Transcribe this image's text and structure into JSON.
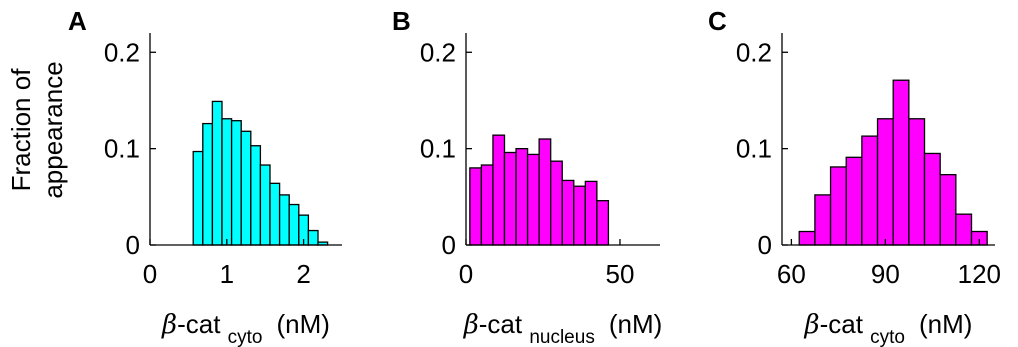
{
  "ylabel_lines": [
    "Fraction of",
    "appearance"
  ],
  "chart_data": [
    {
      "type": "bar",
      "panel": "A",
      "xlim": [
        0,
        2.5
      ],
      "ylim": [
        0,
        0.22
      ],
      "xticks": [
        0,
        1,
        2
      ],
      "xtick_labels": [
        "0",
        "1",
        "2"
      ],
      "yticks": [
        0,
        0.1,
        0.2
      ],
      "ytick_labels": [
        "0",
        "0.1",
        "0.2"
      ],
      "bin_width": 0.125,
      "bin_centers": [
        0.625,
        0.75,
        0.875,
        1.0,
        1.125,
        1.25,
        1.375,
        1.5,
        1.625,
        1.75,
        1.875,
        2.0,
        2.125,
        2.25
      ],
      "values": [
        0.097,
        0.126,
        0.149,
        0.131,
        0.129,
        0.118,
        0.103,
        0.083,
        0.064,
        0.052,
        0.042,
        0.031,
        0.015,
        0.003
      ],
      "color": "#00ffff",
      "xlabel": {
        "symbol": "β",
        "main": "-cat",
        "sub": "cyto",
        "unit": "(nM)"
      }
    },
    {
      "type": "bar",
      "panel": "B",
      "xlim": [
        0,
        63
      ],
      "ylim": [
        0,
        0.22
      ],
      "xticks": [
        0,
        50
      ],
      "xtick_labels": [
        "0",
        "50"
      ],
      "yticks": [
        0,
        0.1,
        0.2
      ],
      "ytick_labels": [
        "0",
        "0.1",
        "0.2"
      ],
      "bin_width": 3.75,
      "bin_centers": [
        3.125,
        6.875,
        10.625,
        14.375,
        18.125,
        21.875,
        25.625,
        29.375,
        33.125,
        36.875,
        40.625,
        44.375,
        48.125
      ],
      "values": [
        0.08,
        0.083,
        0.114,
        0.096,
        0.1,
        0.094,
        0.11,
        0.087,
        0.067,
        0.061,
        0.066,
        0.046,
        0.0
      ],
      "color": "#ff00ff",
      "xlabel": {
        "symbol": "β",
        "main": "-cat",
        "sub": "nucleus",
        "unit": "(nM)"
      }
    },
    {
      "type": "bar",
      "panel": "C",
      "xlim": [
        57,
        125
      ],
      "ylim": [
        0,
        0.22
      ],
      "xticks": [
        60,
        90,
        120
      ],
      "xtick_labels": [
        "60",
        "90",
        "120"
      ],
      "yticks": [
        0,
        0.1,
        0.2
      ],
      "ytick_labels": [
        "0",
        "0.1",
        "0.2"
      ],
      "bin_width": 5,
      "bin_centers": [
        65,
        70,
        75,
        80,
        85,
        90,
        95,
        100,
        105,
        110,
        115,
        120
      ],
      "values": [
        0.014,
        0.052,
        0.081,
        0.091,
        0.113,
        0.131,
        0.171,
        0.131,
        0.095,
        0.073,
        0.032,
        0.014
      ],
      "color": "#ff00ff",
      "xlabel": {
        "symbol": "β",
        "main": "-cat",
        "sub": "cyto",
        "unit": "(nM)"
      }
    }
  ]
}
